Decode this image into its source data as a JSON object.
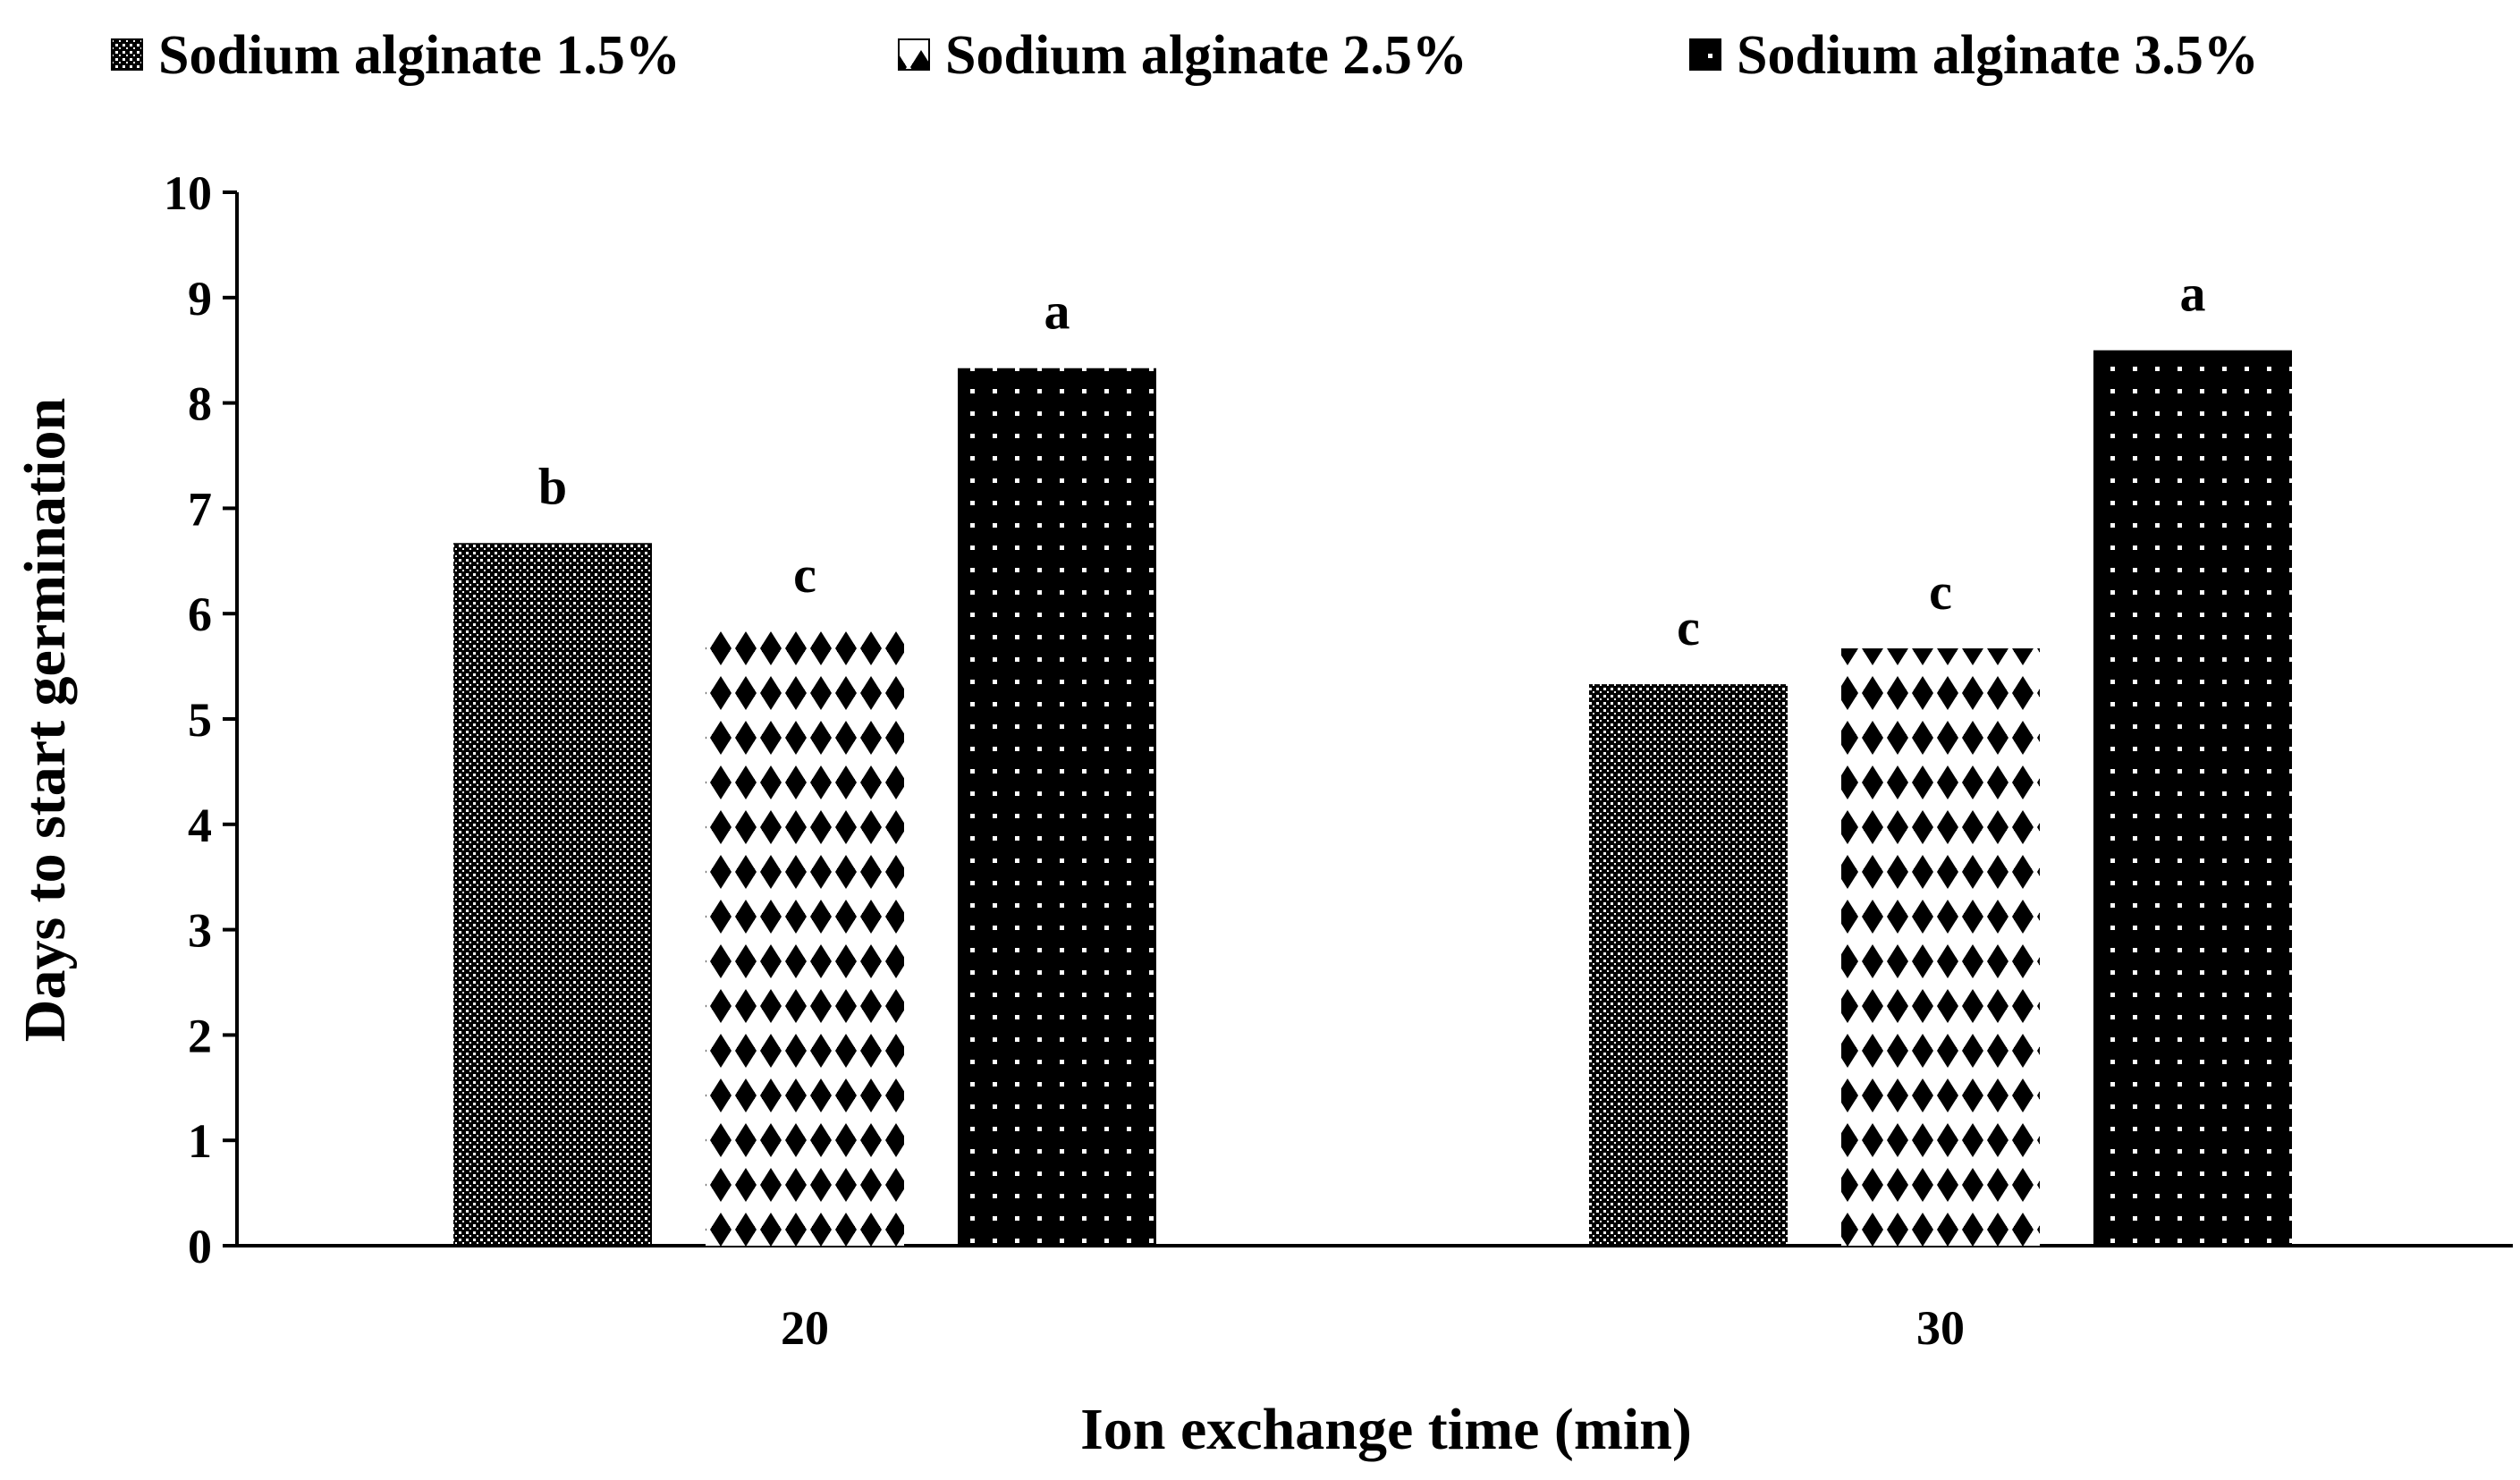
{
  "chart_data": {
    "type": "bar",
    "xlabel": "Ion exchange time (min)",
    "ylabel": "Days to start germination",
    "ylim": [
      0,
      10
    ],
    "yticks": [
      0,
      1,
      2,
      3,
      4,
      5,
      6,
      7,
      8,
      9,
      10
    ],
    "categories": [
      "20",
      "30"
    ],
    "legend_position": "top",
    "grid": false,
    "series": [
      {
        "name": "Sodium alginate 1.5%",
        "values": [
          6.67,
          5.33
        ],
        "labels": [
          "b",
          "c"
        ],
        "pattern": "fine-check"
      },
      {
        "name": "Sodium alginate 2.5%",
        "values": [
          5.83,
          5.67
        ],
        "labels": [
          "c",
          "c"
        ],
        "pattern": "diamond"
      },
      {
        "name": "Sodium alginate 3.5%",
        "values": [
          8.33,
          8.5
        ],
        "labels": [
          "a",
          "a"
        ],
        "pattern": "dot"
      }
    ],
    "colors": {
      "ink": "#000000",
      "background": "#ffffff"
    }
  }
}
